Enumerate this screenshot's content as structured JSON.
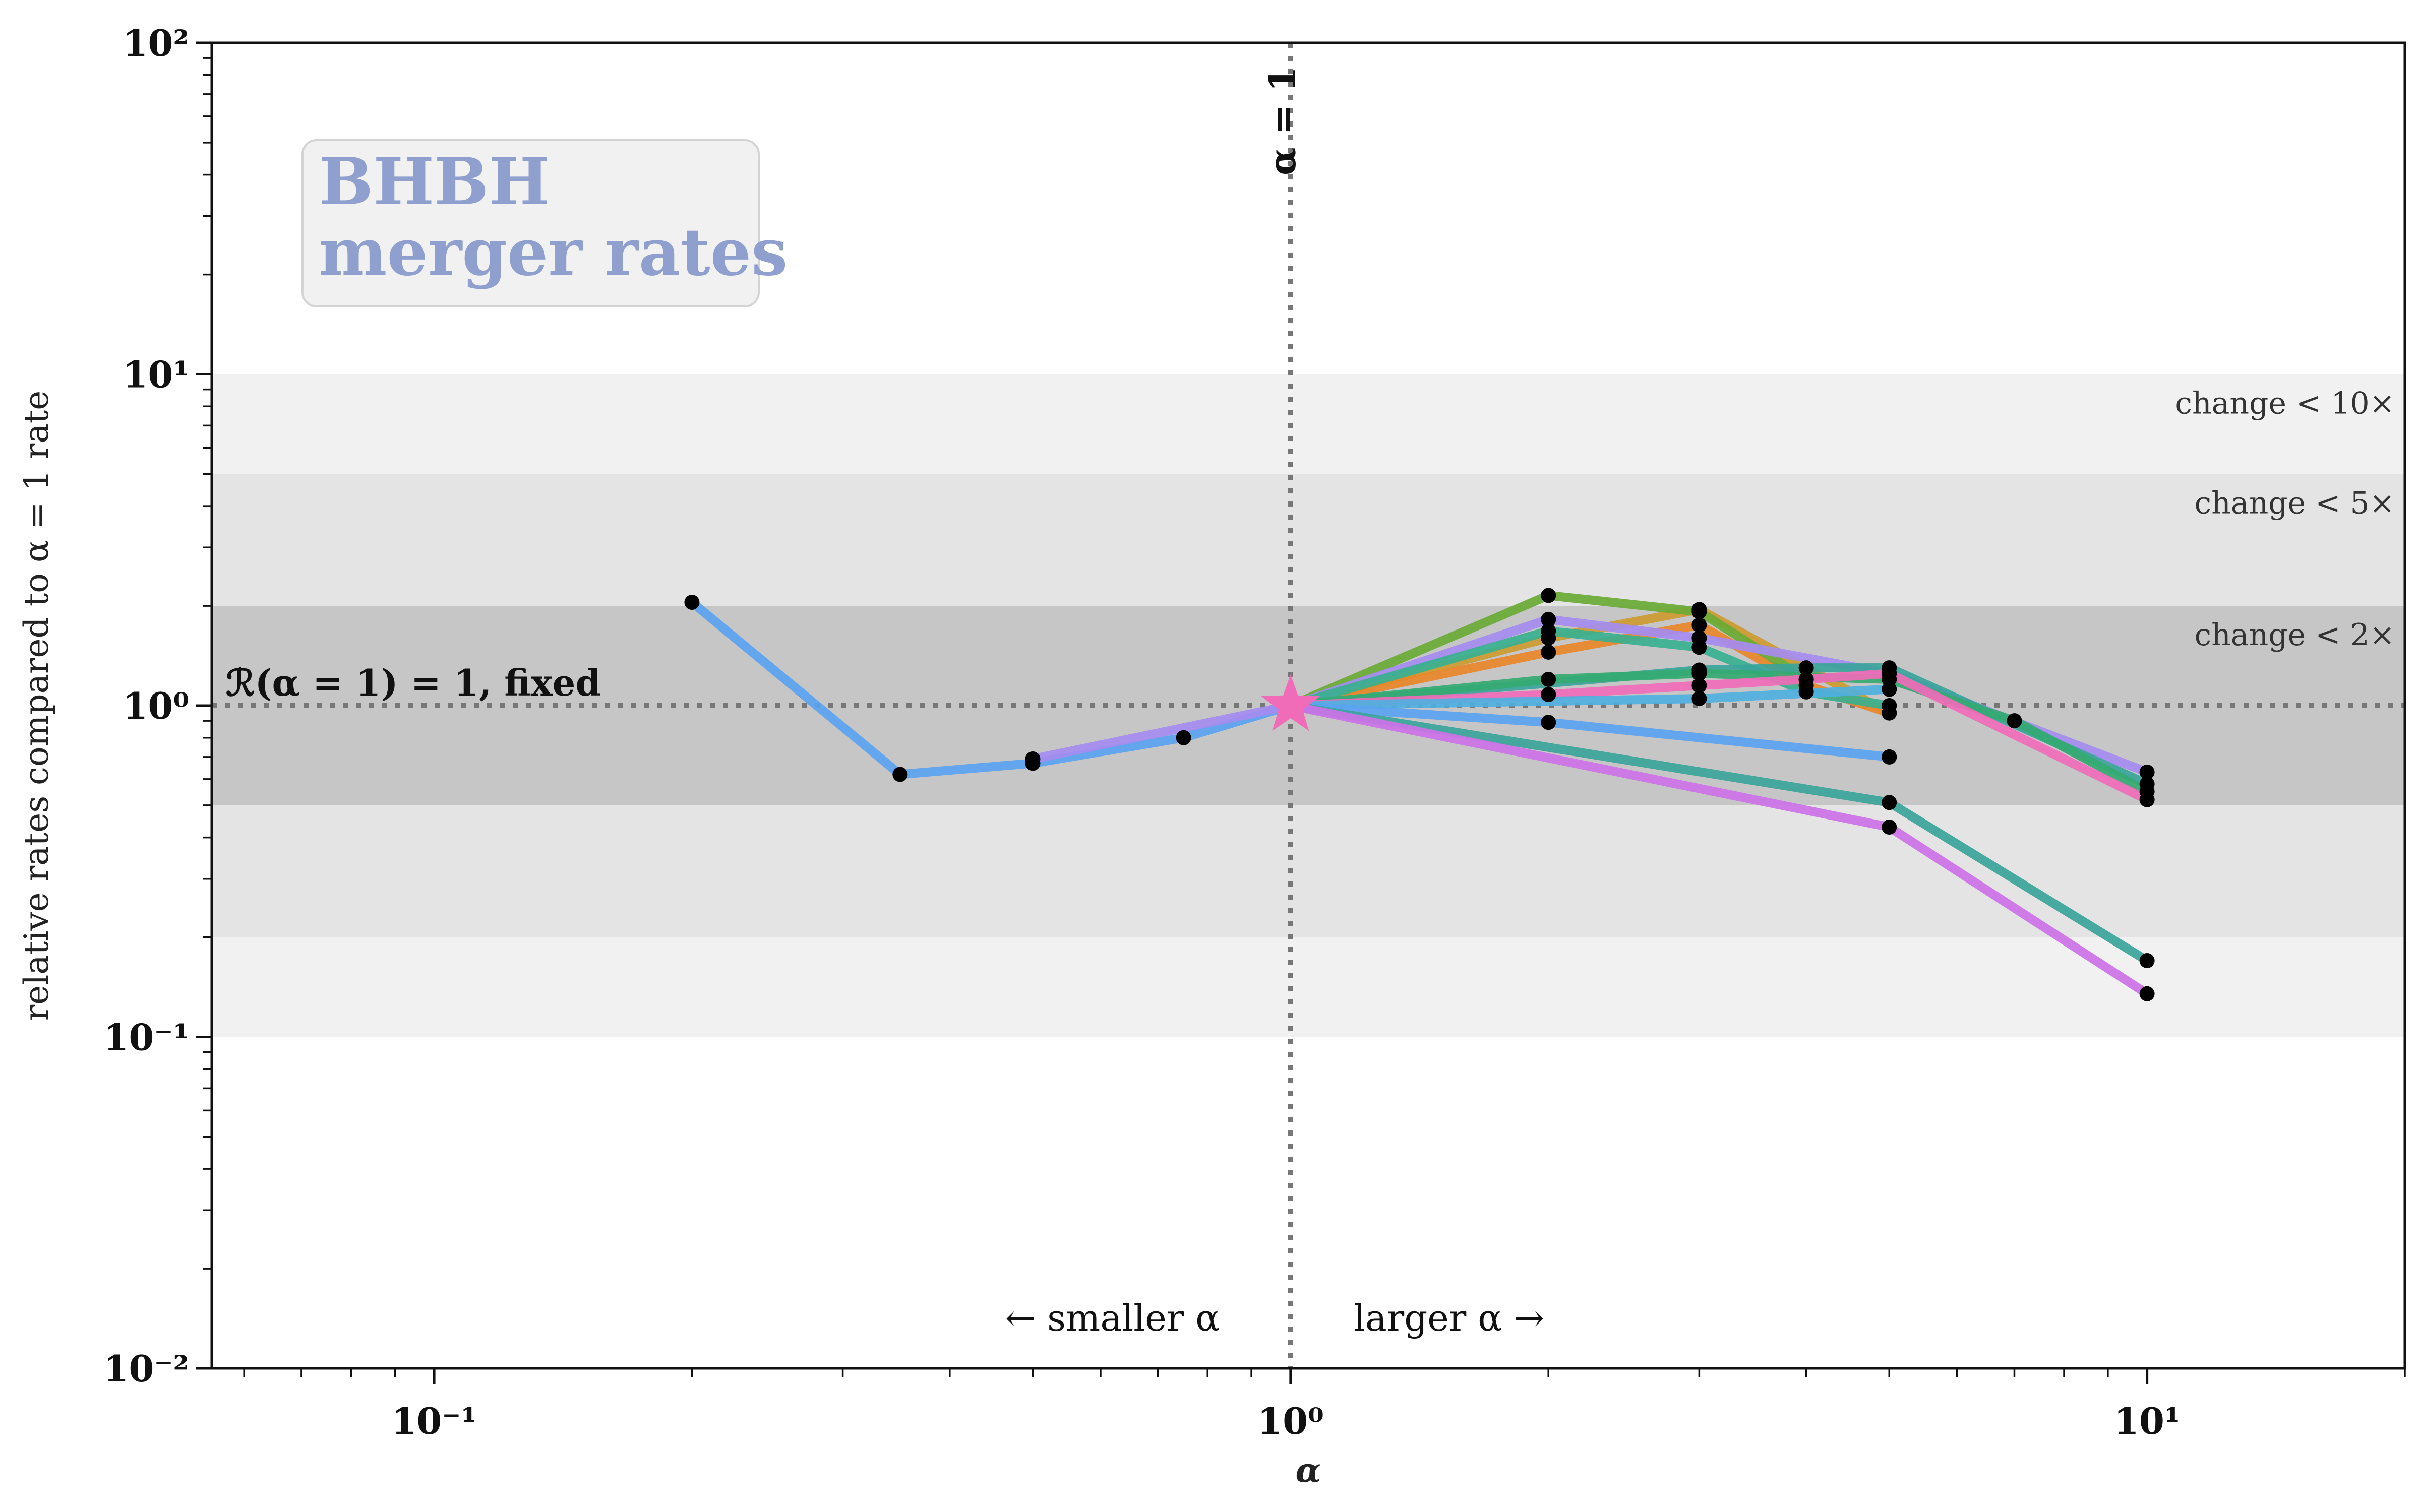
{
  "chart_data": {
    "type": "line",
    "xscale": "log",
    "yscale": "log",
    "xlim": [
      0.055,
      20
    ],
    "ylim": [
      0.01,
      100
    ],
    "xlabel": "α",
    "ylabel": "relative rates compared to α = 1 rate",
    "x_tick_labels": [
      "10⁻¹",
      "10⁰",
      "10¹"
    ],
    "x_tick_values": [
      0.1,
      1,
      10
    ],
    "y_tick_labels": [
      "10⁻²",
      "10⁻¹",
      "10⁰",
      "10¹",
      "10²"
    ],
    "y_tick_values": [
      0.01,
      0.1,
      1,
      10,
      100
    ],
    "grid": false,
    "legend_box": {
      "line1": "BHBH",
      "line2": "merger rates",
      "position": "top-left"
    },
    "reference_lines": {
      "vertical": {
        "x": 1,
        "label": "α = 1"
      },
      "horizontal": {
        "y": 1,
        "label": "ℛ(α = 1) = 1, fixed"
      }
    },
    "bands": [
      {
        "low": 0.1,
        "high": 10,
        "label": "change < 10×",
        "color": "#f1f1f1"
      },
      {
        "low": 0.2,
        "high": 5,
        "label": "change < 5×",
        "color": "#e4e4e4"
      },
      {
        "low": 0.5,
        "high": 2,
        "label": "change < 2×",
        "color": "#c6c6c6"
      }
    ],
    "annotations": {
      "left_arrow": "← smaller α",
      "right_arrow": "larger α →"
    },
    "reference_point": {
      "x": 1,
      "y": 1,
      "color": "#f06bb8"
    },
    "series": [
      {
        "color": "#5ba3f0",
        "x": [
          0.2,
          0.35,
          0.5,
          0.75,
          1
        ],
        "y": [
          2.05,
          0.62,
          0.67,
          0.8,
          1.0
        ]
      },
      {
        "color": "#a48cf0",
        "x": [
          0.5,
          1
        ],
        "y": [
          0.69,
          1.0
        ]
      },
      {
        "color": "#cc9b30",
        "x": [
          1,
          2,
          3,
          5
        ],
        "y": [
          1.0,
          1.6,
          1.95,
          0.95
        ]
      },
      {
        "color": "#e8872a",
        "x": [
          1,
          2,
          3,
          4,
          5
        ],
        "y": [
          1.0,
          1.45,
          1.75,
          1.15,
          0.95
        ]
      },
      {
        "color": "#6aaa35",
        "x": [
          1,
          2,
          3,
          4
        ],
        "y": [
          1.0,
          2.15,
          1.92,
          1.2
        ]
      },
      {
        "color": "#a48cf0",
        "x": [
          1,
          2,
          3,
          5,
          10
        ],
        "y": [
          1.0,
          1.82,
          1.6,
          1.25,
          0.63
        ]
      },
      {
        "color": "#38b08f",
        "x": [
          1,
          2,
          3,
          4,
          5
        ],
        "y": [
          1.0,
          1.68,
          1.5,
          1.1,
          1.0
        ]
      },
      {
        "color": "#3aa49a",
        "x": [
          1,
          3,
          4,
          5,
          10
        ],
        "y": [
          1.0,
          1.28,
          1.3,
          1.3,
          0.58
        ]
      },
      {
        "color": "#34aa72",
        "x": [
          1,
          2,
          3,
          5,
          7,
          10
        ],
        "y": [
          1.0,
          1.2,
          1.25,
          1.2,
          0.9,
          0.55
        ]
      },
      {
        "color": "#f06bb8",
        "x": [
          1,
          2,
          3,
          4,
          5,
          10
        ],
        "y": [
          1.0,
          1.08,
          1.15,
          1.2,
          1.25,
          0.52
        ]
      },
      {
        "color": "#4fb0e0",
        "x": [
          1,
          3,
          5
        ],
        "y": [
          1.0,
          1.05,
          1.12
        ]
      },
      {
        "color": "#5ba3f0",
        "x": [
          1,
          2,
          5
        ],
        "y": [
          1.0,
          0.89,
          0.7
        ]
      },
      {
        "color": "#3aa49a",
        "x": [
          1,
          5,
          10
        ],
        "y": [
          1.0,
          0.51,
          0.17
        ]
      },
      {
        "color": "#cc72e8",
        "x": [
          1,
          5,
          10
        ],
        "y": [
          1.0,
          0.43,
          0.135
        ]
      }
    ]
  }
}
